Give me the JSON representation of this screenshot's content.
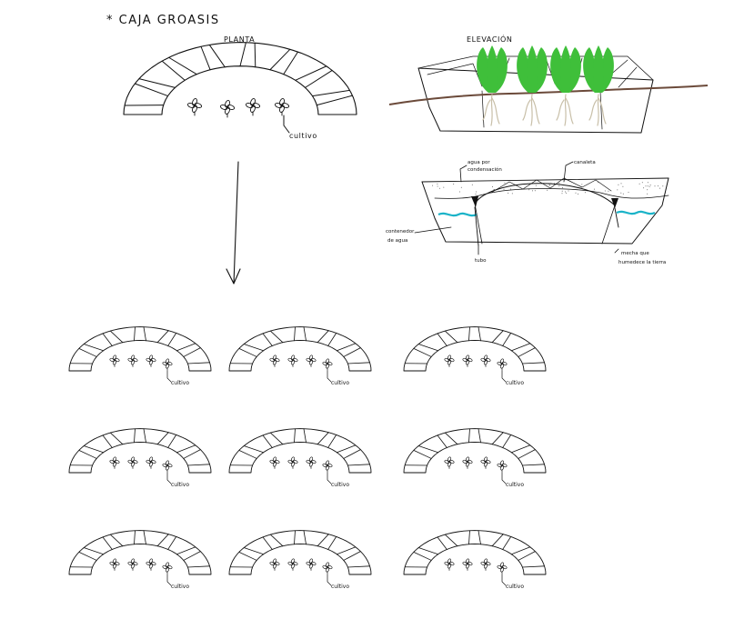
{
  "title": "* CAJA GROASIS",
  "plan": {
    "heading": "PLANTA",
    "cultivo_label": "cultivo"
  },
  "elevation": {
    "heading": "ELEVACIÓN",
    "plant_color": "#3fbf3a",
    "soil_color": "#6b4a3a",
    "root_color": "#c8bfa8"
  },
  "section": {
    "water_label_1": "agua por",
    "water_label_2": "condensación",
    "canaleta_label": "canaleta",
    "container_label_1": "contenedor",
    "container_label_2": "de agua",
    "tube_label": "tubo",
    "wick_label_1": "mecha que",
    "wick_label_2": "humedece la tierra",
    "water_color": "#1bb3c8"
  },
  "grid": {
    "rows": 3,
    "cols": 3,
    "cultivo_label": "cultivo"
  }
}
